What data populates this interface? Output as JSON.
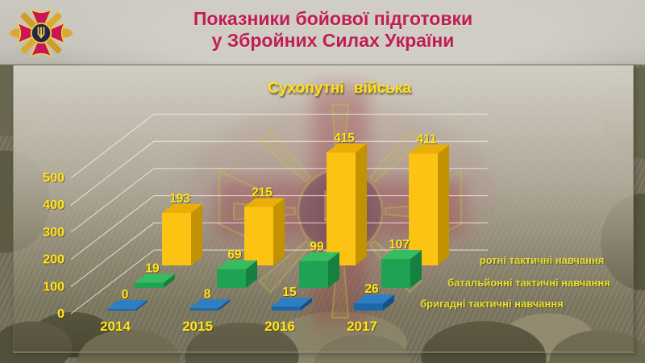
{
  "header": {
    "title_line1": "Показники бойової підготовки",
    "title_line2": "у Збройних Силах України",
    "title_color": "#c11d55",
    "emblem": "emblem-of-the-armed-forces-of-ukraine"
  },
  "chart_data": {
    "type": "bar",
    "projection": "3d",
    "title": "Сухопутні війська",
    "title_color": "#ffe11a",
    "categories": [
      "2014",
      "2015",
      "2016",
      "2017"
    ],
    "series": [
      {
        "name": "бригадні тактичні навчання",
        "values": [
          0,
          8,
          15,
          26
        ],
        "color": "#1c66aa",
        "color_top": "#2e7fc2",
        "color_side": "#164f88"
      },
      {
        "name": "батальйонні тактичні навчання",
        "values": [
          19,
          69,
          99,
          107
        ],
        "color": "#1fa251",
        "color_top": "#36bd60",
        "color_side": "#15803f"
      },
      {
        "name": "ротні тактичні навчання",
        "values": [
          193,
          215,
          415,
          411
        ],
        "color": "#fdc313",
        "color_top": "#e9af07",
        "color_side": "#c39200"
      }
    ],
    "ylim": [
      0,
      500
    ],
    "yticks": [
      0,
      100,
      200,
      300,
      400,
      500
    ],
    "grid": true,
    "legend_position": "right",
    "axis_label_color": "#ffe619",
    "value_label_color": "#ffe619",
    "legend_text_color": "#e2e033",
    "gridline_color": "#f6f4ef"
  }
}
